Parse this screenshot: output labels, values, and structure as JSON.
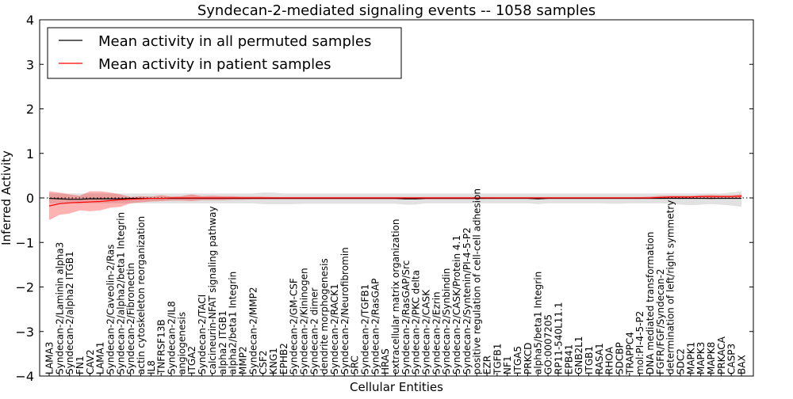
{
  "chart_data": {
    "type": "line",
    "title": "Syndecan-2-mediated signaling events -- 1058 samples",
    "xlabel": "Cellular Entities",
    "ylabel": "Inferred Activity",
    "ylim": [
      -4,
      4
    ],
    "yticks": [
      -4,
      -3,
      -2,
      -1,
      0,
      1,
      2,
      3,
      4
    ],
    "legend": {
      "placement": "top-left",
      "entries": [
        "Mean activity in all permuted samples",
        "Mean activity in patient samples"
      ]
    },
    "colors": {
      "permuted": "#000000",
      "patient": "#ff0000",
      "patient_band": "#f4a3a3",
      "permuted_band": "#d9d9d9"
    },
    "categories": [
      "LAMA3",
      "Syndecan-2/Laminin alpha3",
      "Syndecan-2/alpha2 ITGB1",
      "FN1",
      "CAV2",
      "LAMA1",
      "Syndecan-2/Caveolin-2/Ras",
      "Syndecan-2/alpha2/beta1 Integrin",
      "Syndecan-2/Fibronectin",
      "actin cytoskeleton reorganization",
      "IL8",
      "TNFRSF13B",
      "Syndecan-2/IL8",
      "angiogenesis",
      "ITGA2",
      "Syndecan-2/TACI",
      "calcineurin-NFAT signaling pathway",
      "alpha2 ITGB1",
      "alpha2/beta1 Integrin",
      "MMP2",
      "Syndecan-2/MMP2",
      "CSF2",
      "KNG1",
      "EPHB2",
      "Syndecan-2/GM-CSF",
      "Syndecan-2/Kininogen",
      "Syndecan-2 dimer",
      "dendrite morphogenesis",
      "Syndecan-2/RACK1",
      "Syndecan-2/Neurofibromin",
      "SRC",
      "Syndecan-2/TGFB1",
      "Syndecan-2/RasGAP",
      "HRAS",
      "extracellular matrix organization",
      "Syndecan-2/RasGAP/Src",
      "Syndecan-2/PKC delta",
      "Syndecan-2/CASK",
      "Syndecan-2/Ezrin",
      "Syndecan-2/Synbindin",
      "Syndecan-2/CASK/Protein 4.1",
      "Syndecan-2/Syntenin/PI-4-5-P2",
      "positive regulation of cell-cell adhesion",
      "EZR",
      "TGFB1",
      "NF1",
      "ITGA5",
      "PRKCD",
      "alpha5/beta1 Integrin",
      "GO:0007205",
      "RP11-540L11.1",
      "EPB41",
      "GNB2L1",
      "ITGB1",
      "RASA1",
      "RHOA",
      "SDCBP",
      "TRAPPC4",
      "mol:PI-4-5-P2",
      "DNA mediated transformation",
      "FGFR/FGF/Syndecan-2",
      "determination of left/right symmetry",
      "SDC2",
      "MAPK1",
      "MAPK3",
      "MAPK8",
      "PRKACA",
      "CASP3",
      "BAX"
    ],
    "series": [
      {
        "name": "Mean activity in all permuted samples",
        "values": [
          -0.01,
          -0.02,
          -0.03,
          -0.03,
          -0.02,
          -0.02,
          -0.02,
          -0.02,
          -0.01,
          -0.01,
          -0.01,
          -0.01,
          -0.01,
          -0.01,
          -0.01,
          -0.01,
          -0.01,
          -0.01,
          -0.01,
          -0.01,
          -0.01,
          -0.01,
          -0.01,
          -0.01,
          -0.01,
          -0.01,
          -0.01,
          -0.01,
          -0.01,
          -0.01,
          -0.01,
          -0.01,
          -0.01,
          -0.01,
          -0.01,
          -0.02,
          -0.02,
          -0.01,
          -0.01,
          -0.01,
          -0.01,
          -0.01,
          -0.01,
          -0.01,
          -0.01,
          -0.01,
          -0.01,
          -0.01,
          -0.02,
          -0.01,
          -0.01,
          -0.01,
          -0.01,
          -0.01,
          -0.01,
          -0.01,
          -0.01,
          -0.01,
          -0.01,
          -0.01,
          -0.01,
          -0.01,
          -0.01,
          -0.01,
          -0.01,
          -0.01,
          -0.01,
          -0.01,
          -0.01
        ],
        "lower": [
          -0.12,
          -0.12,
          -0.12,
          -0.12,
          -0.12,
          -0.12,
          -0.12,
          -0.12,
          -0.12,
          -0.12,
          -0.12,
          -0.12,
          -0.12,
          -0.12,
          -0.12,
          -0.12,
          -0.12,
          -0.12,
          -0.12,
          -0.12,
          -0.12,
          -0.14,
          -0.14,
          -0.14,
          -0.14,
          -0.13,
          -0.13,
          -0.13,
          -0.13,
          -0.13,
          -0.13,
          -0.13,
          -0.13,
          -0.13,
          -0.13,
          -0.15,
          -0.15,
          -0.12,
          -0.12,
          -0.12,
          -0.12,
          -0.12,
          -0.12,
          -0.12,
          -0.12,
          -0.12,
          -0.12,
          -0.12,
          -0.14,
          -0.12,
          -0.12,
          -0.12,
          -0.12,
          -0.12,
          -0.12,
          -0.13,
          -0.13,
          -0.12,
          -0.12,
          -0.12,
          -0.12,
          -0.13,
          -0.15,
          -0.16,
          -0.15,
          -0.14,
          -0.15,
          -0.17,
          -0.2
        ],
        "upper": [
          0.1,
          0.1,
          0.1,
          0.1,
          0.1,
          0.1,
          0.1,
          0.1,
          0.1,
          0.1,
          0.1,
          0.1,
          0.1,
          0.1,
          0.1,
          0.1,
          0.1,
          0.1,
          0.1,
          0.1,
          0.1,
          0.12,
          0.12,
          0.1,
          0.1,
          0.1,
          0.1,
          0.1,
          0.1,
          0.1,
          0.1,
          0.1,
          0.1,
          0.1,
          0.1,
          0.1,
          0.1,
          0.1,
          0.1,
          0.1,
          0.1,
          0.1,
          0.1,
          0.1,
          0.1,
          0.1,
          0.1,
          0.1,
          0.1,
          0.1,
          0.1,
          0.1,
          0.1,
          0.1,
          0.1,
          0.1,
          0.1,
          0.1,
          0.1,
          0.1,
          0.1,
          0.1,
          0.1,
          0.1,
          0.1,
          0.1,
          0.1,
          0.12,
          0.15
        ]
      },
      {
        "name": "Mean activity in patient samples",
        "values": [
          -0.18,
          -0.13,
          -0.11,
          -0.1,
          -0.09,
          -0.08,
          -0.06,
          -0.04,
          -0.03,
          -0.02,
          -0.01,
          -0.01,
          0,
          0,
          0,
          0,
          0,
          0,
          0,
          0,
          0,
          0,
          0,
          0,
          0,
          0,
          0,
          0,
          0,
          0,
          0,
          0,
          0,
          0,
          0,
          0,
          0,
          0,
          0,
          0,
          0,
          0,
          0,
          0,
          0,
          0,
          0,
          0,
          0,
          0,
          0,
          0,
          0,
          0,
          0,
          0,
          0,
          0,
          0,
          0,
          0.01,
          0.02,
          0.02,
          0.02,
          0.03,
          0.03,
          0.03,
          0.03,
          0.04
        ],
        "lower": [
          -0.5,
          -0.38,
          -0.35,
          -0.28,
          -0.3,
          -0.28,
          -0.22,
          -0.2,
          -0.12,
          -0.1,
          -0.08,
          -0.07,
          -0.06,
          -0.06,
          -0.07,
          -0.05,
          -0.05,
          -0.05,
          -0.04,
          -0.04,
          -0.03,
          -0.03,
          -0.03,
          -0.03,
          -0.03,
          -0.03,
          -0.03,
          -0.03,
          -0.03,
          -0.03,
          -0.03,
          -0.03,
          -0.03,
          -0.03,
          -0.03,
          -0.03,
          -0.03,
          -0.03,
          -0.03,
          -0.03,
          -0.03,
          -0.03,
          -0.03,
          -0.02,
          -0.02,
          -0.02,
          -0.02,
          -0.02,
          -0.02,
          -0.02,
          -0.02,
          -0.02,
          -0.02,
          -0.02,
          -0.02,
          -0.02,
          -0.02,
          -0.02,
          -0.02,
          -0.01,
          -0.01,
          -0.01,
          -0.01,
          -0.01,
          -0.01,
          -0.03,
          -0.01,
          -0.01,
          -0.02
        ],
        "upper": [
          0.15,
          0.12,
          0.08,
          0.05,
          0.15,
          0.15,
          0.12,
          0.08,
          0.02,
          0.04,
          0.03,
          0.06,
          0.03,
          0.04,
          0.08,
          0.04,
          0.05,
          0.04,
          0.04,
          0.03,
          0.03,
          0.03,
          0.02,
          0.02,
          0.02,
          0.02,
          0.02,
          0.02,
          0.02,
          0.02,
          0.02,
          0.02,
          0.02,
          0.02,
          0.02,
          0.02,
          0.02,
          0.02,
          0.02,
          0.02,
          0.02,
          0.02,
          0.02,
          0.02,
          0.02,
          0.02,
          0.02,
          0.02,
          0.02,
          0.02,
          0.02,
          0.02,
          0.02,
          0.02,
          0.02,
          0.02,
          0.02,
          0.02,
          0.02,
          0.03,
          0.05,
          0.05,
          0.05,
          0.05,
          0.06,
          0.07,
          0.06,
          0.06,
          0.08
        ]
      }
    ]
  }
}
